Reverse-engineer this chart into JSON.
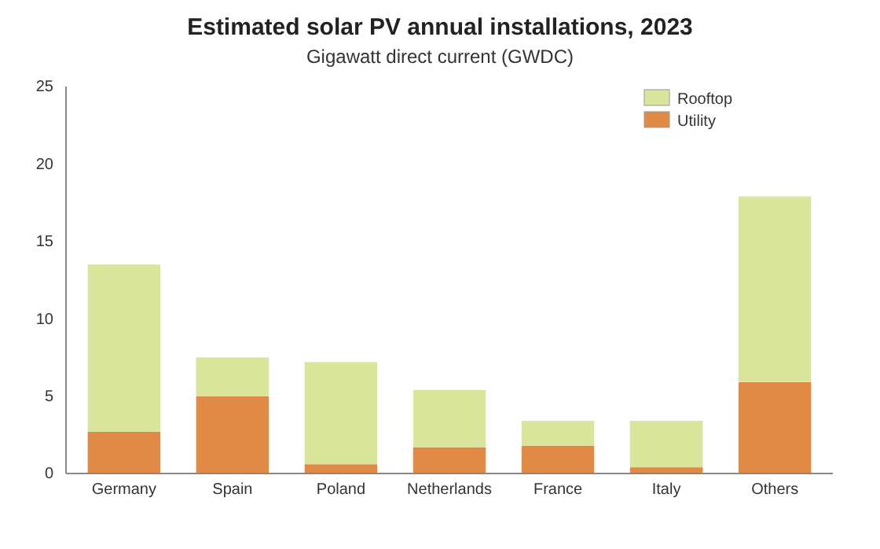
{
  "chart_data": {
    "type": "bar",
    "stacked": true,
    "title": "Estimated solar PV annual installations, 2023",
    "subtitle": "Gigawatt direct current (GWDC)",
    "categories": [
      "Germany",
      "Spain",
      "Poland",
      "Netherlands",
      "France",
      "Italy",
      "Others"
    ],
    "series": [
      {
        "name": "Utility",
        "color": "#e08a45",
        "values": [
          2.7,
          5.0,
          0.6,
          1.7,
          1.8,
          0.4,
          5.9
        ]
      },
      {
        "name": "Rooftop",
        "color": "#dae59c",
        "values": [
          10.8,
          2.5,
          6.6,
          3.7,
          1.6,
          3.0,
          12.0
        ]
      }
    ],
    "ylim": [
      0,
      25
    ],
    "yticks": [
      0,
      5,
      10,
      15,
      20,
      25
    ],
    "legend": "top right"
  }
}
